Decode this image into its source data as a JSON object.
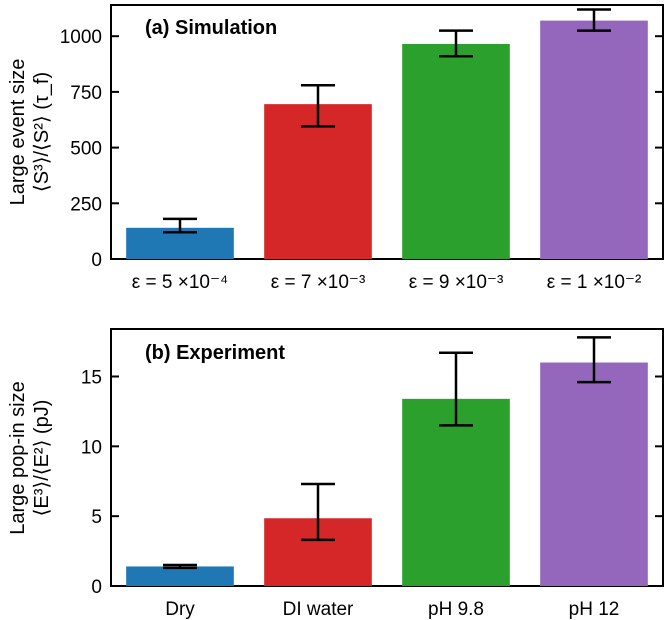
{
  "chart_data": [
    {
      "type": "bar",
      "title": "(a) Simulation",
      "ylabel_line1": "Large event size",
      "ylabel_line2": "⟨S³⟩/⟨S²⟩ (τ_f)",
      "categories": [
        "ε = 5 ×10⁻⁴",
        "ε = 7 ×10⁻³",
        "ε = 9 ×10⁻³",
        "ε = 1 ×10⁻²"
      ],
      "values": [
        140,
        695,
        965,
        1070
      ],
      "err_low": [
        120,
        595,
        910,
        1025
      ],
      "err_high": [
        180,
        780,
        1025,
        1120
      ],
      "colors": [
        "#1f77b4",
        "#d62728",
        "#2ca02c",
        "#9467bd"
      ],
      "ylim": [
        0,
        1140
      ],
      "yticks": [
        0,
        250,
        500,
        750,
        1000
      ],
      "ytick_labels": [
        "0",
        "250",
        "500",
        "750",
        "1000"
      ]
    },
    {
      "type": "bar",
      "title": "(b) Experiment",
      "ylabel_line1": "Large pop-in size",
      "ylabel_line2": "⟨E³⟩/⟨E²⟩ (pJ)",
      "categories": [
        "Dry",
        "DI water",
        "pH 9.8",
        "pH 12"
      ],
      "values": [
        1.4,
        4.85,
        13.4,
        16.0
      ],
      "err_low": [
        1.3,
        3.3,
        11.5,
        14.6
      ],
      "err_high": [
        1.5,
        7.3,
        16.7,
        17.8
      ],
      "colors": [
        "#1f77b4",
        "#d62728",
        "#2ca02c",
        "#9467bd"
      ],
      "ylim": [
        0,
        18.4
      ],
      "yticks": [
        0,
        5,
        10,
        15
      ],
      "ytick_labels": [
        "0",
        "5",
        "10",
        "15"
      ]
    }
  ]
}
